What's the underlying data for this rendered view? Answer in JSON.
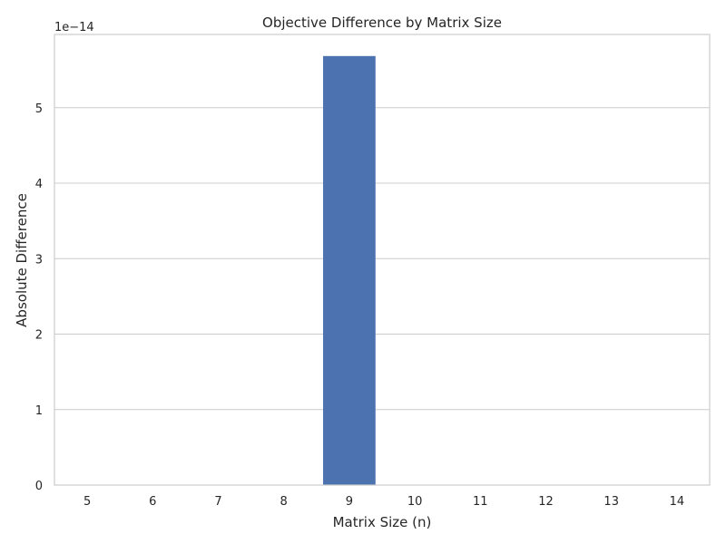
{
  "chart_data": {
    "type": "bar",
    "title": "Objective Difference by Matrix Size",
    "xlabel": "Matrix Size (n)",
    "ylabel": "Absolute Difference",
    "y_offset_label": "1e−14",
    "categories": [
      "5",
      "6",
      "7",
      "8",
      "9",
      "10",
      "11",
      "12",
      "13",
      "14"
    ],
    "values": [
      0,
      0,
      0,
      0,
      5.684e-14,
      0,
      0,
      0,
      0,
      0
    ],
    "ylim": [
      0,
      5.97e-14
    ],
    "yticks": [
      0,
      1e-14,
      2e-14,
      3e-14,
      4e-14,
      5e-14
    ],
    "ytick_labels": [
      "0",
      "1",
      "2",
      "3",
      "4",
      "5"
    ],
    "grid": true,
    "legend": "none",
    "colors": {
      "bar": "#4c72b0",
      "grid": "#cccccc",
      "frame": "#cccccc",
      "text": "#262626"
    }
  }
}
